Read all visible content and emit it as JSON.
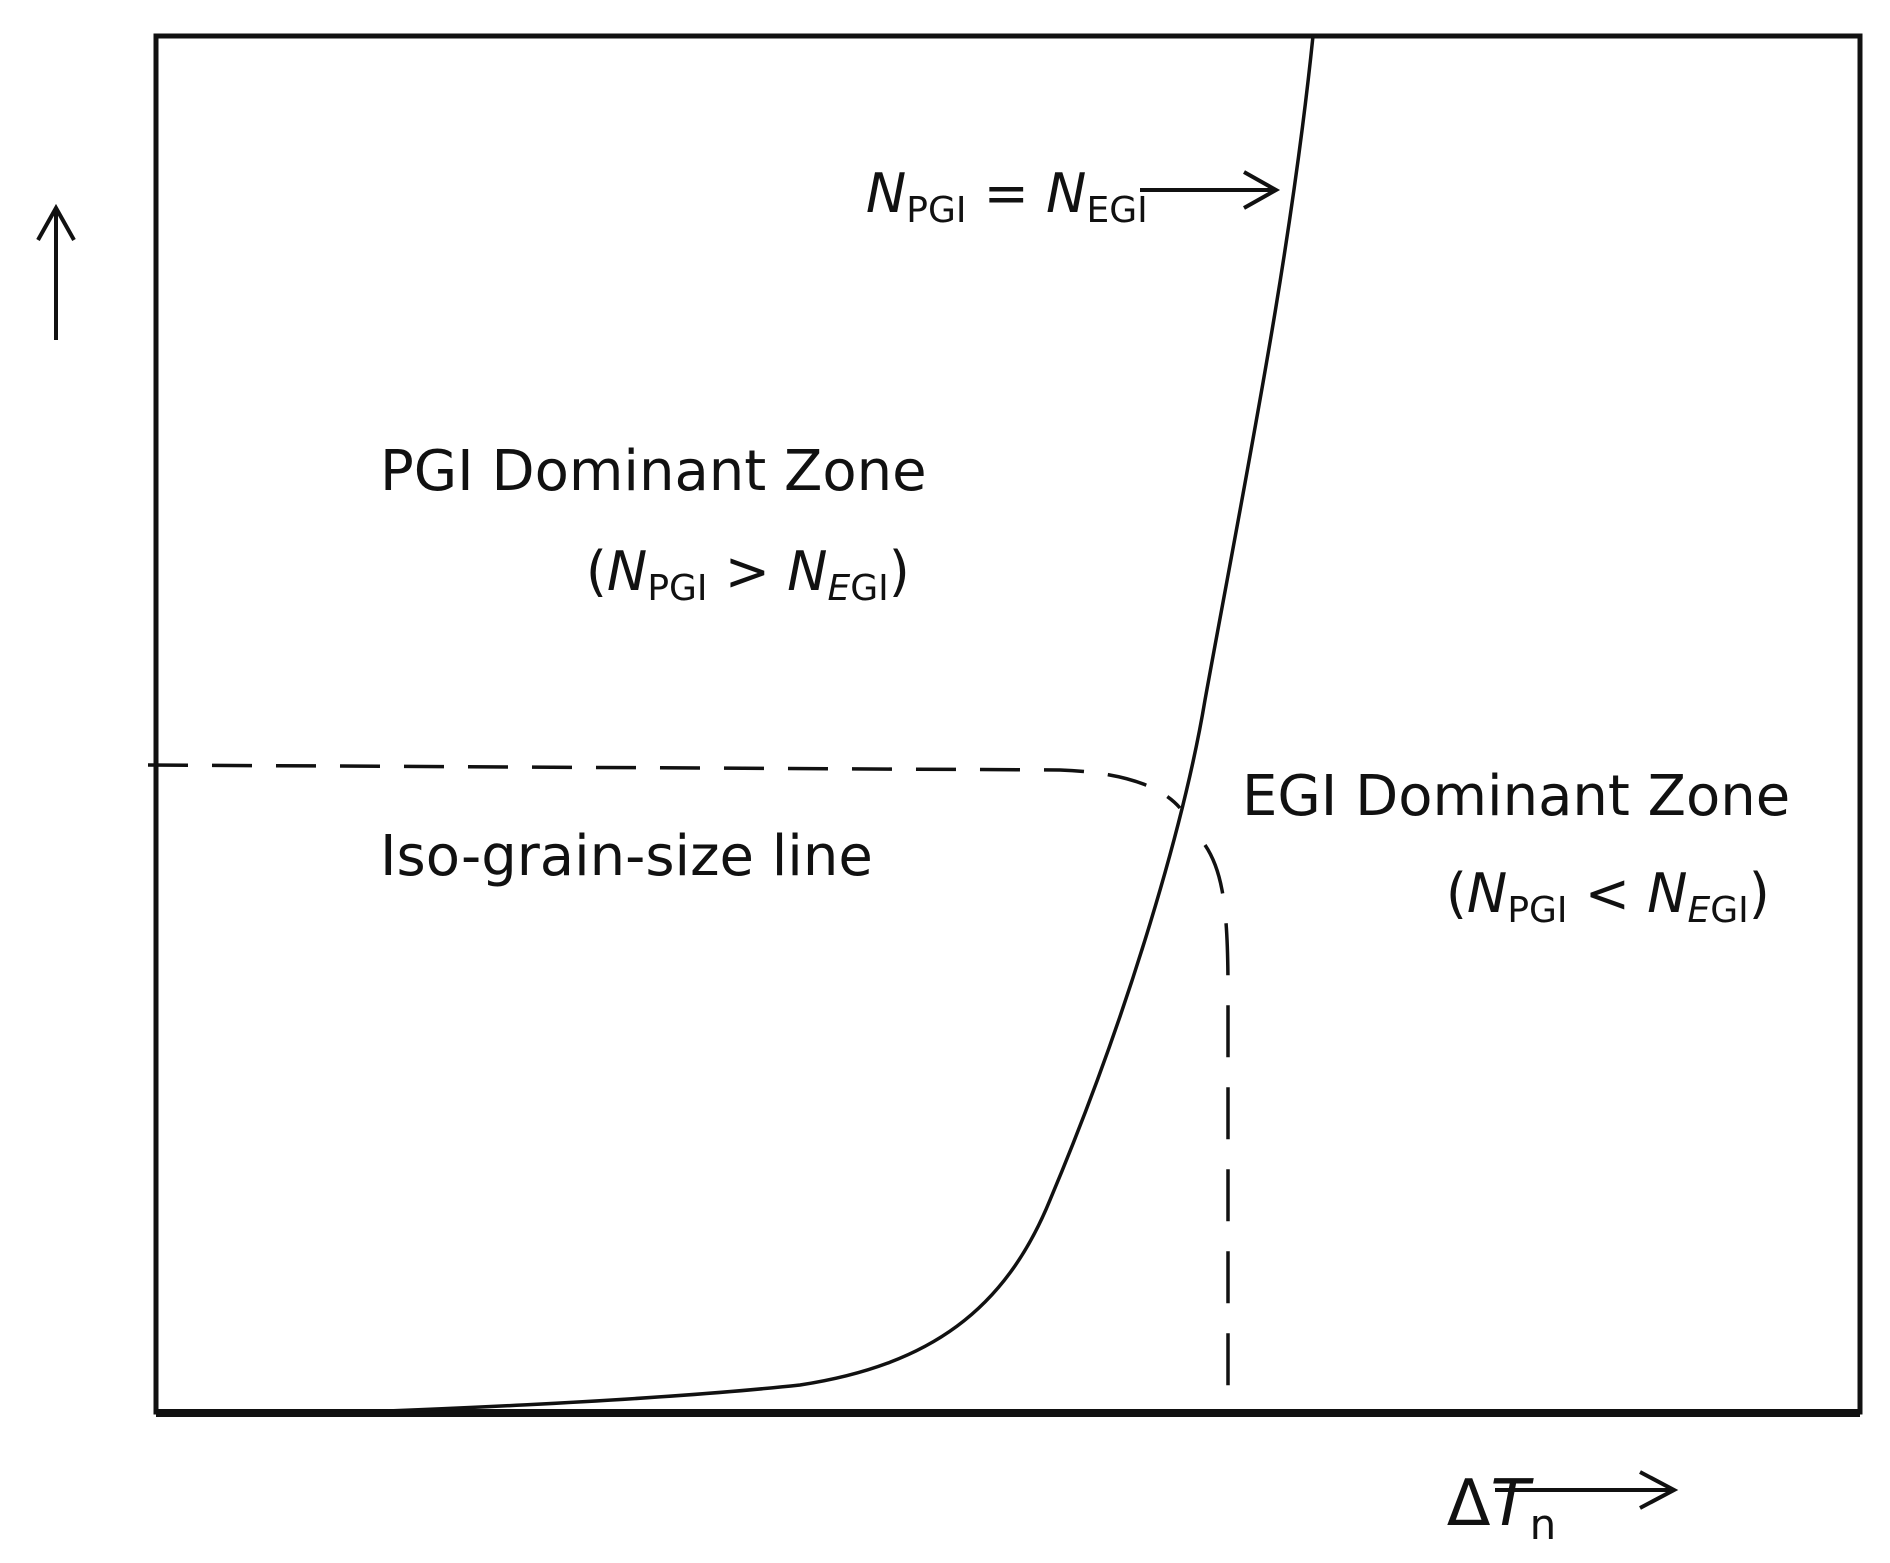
{
  "colors": {
    "ink": "#111111",
    "background": "#ffffff"
  },
  "labels": {
    "boundary": {
      "n1": "N",
      "s1": "PGI",
      "eq": " = ",
      "n2": "N",
      "s2": "EGI"
    },
    "pgi_zone": {
      "title": "PGI Dominant Zone",
      "open": "(",
      "n1": "N",
      "s1": "PGI",
      "op": " > ",
      "n2": "N",
      "s2_italic": "E",
      "s2_rest": "GI",
      "close": ")"
    },
    "egi_zone": {
      "title": "EGI Dominant Zone",
      "open": "(",
      "n1": "N",
      "s1": "PGI",
      "op": " < ",
      "n2": "N",
      "s2_italic": "E",
      "s2_rest": "GI",
      "close": ")"
    },
    "iso_line": "Iso-grain-size line",
    "x_axis": {
      "delta": "Δ",
      "t": "T",
      "sub": "n"
    }
  },
  "icons": {
    "y_axis_arrow": "arrow-up-icon",
    "x_axis_arrow": "arrow-right-icon",
    "boundary_pointer": "arrow-right-icon"
  }
}
